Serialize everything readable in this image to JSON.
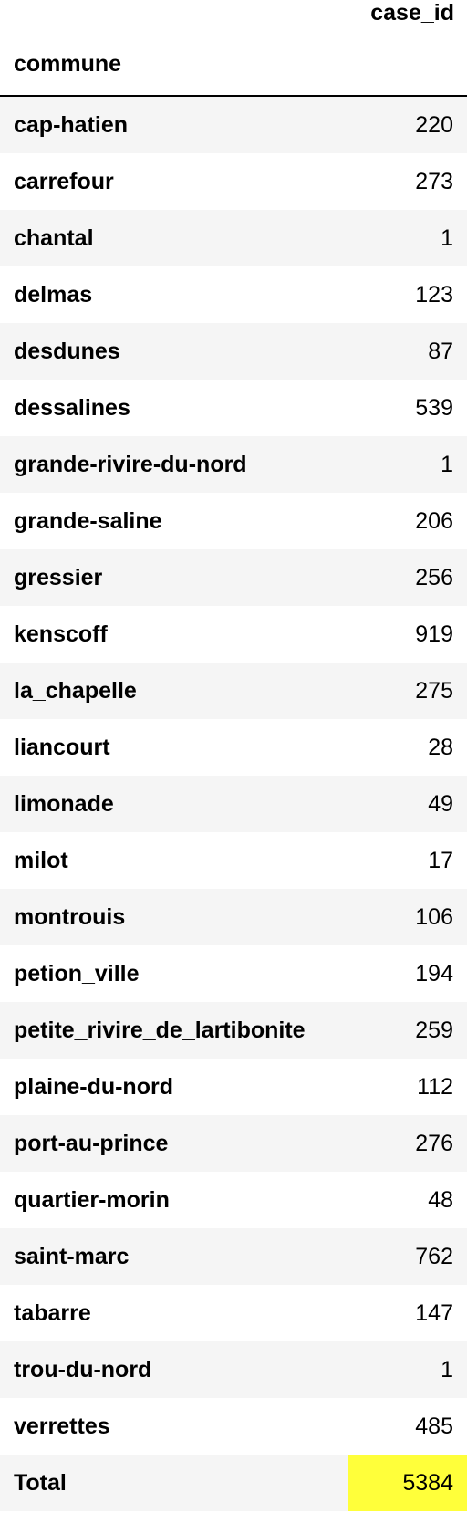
{
  "table": {
    "column_header": "case_id",
    "index_header": "commune",
    "highlight_color": "#ffff3a",
    "rows": [
      {
        "commune": "cap-hatien",
        "case_id": "220"
      },
      {
        "commune": "carrefour",
        "case_id": "273"
      },
      {
        "commune": "chantal",
        "case_id": "1"
      },
      {
        "commune": "delmas",
        "case_id": "123"
      },
      {
        "commune": "desdunes",
        "case_id": "87"
      },
      {
        "commune": "dessalines",
        "case_id": "539"
      },
      {
        "commune": "grande-rivire-du-nord",
        "case_id": "1"
      },
      {
        "commune": "grande-saline",
        "case_id": "206"
      },
      {
        "commune": "gressier",
        "case_id": "256"
      },
      {
        "commune": "kenscoff",
        "case_id": "919"
      },
      {
        "commune": "la_chapelle",
        "case_id": "275"
      },
      {
        "commune": "liancourt",
        "case_id": "28"
      },
      {
        "commune": "limonade",
        "case_id": "49"
      },
      {
        "commune": "milot",
        "case_id": "17"
      },
      {
        "commune": "montrouis",
        "case_id": "106"
      },
      {
        "commune": "petion_ville",
        "case_id": "194"
      },
      {
        "commune": "petite_rivire_de_lartibonite",
        "case_id": "259"
      },
      {
        "commune": "plaine-du-nord",
        "case_id": "112"
      },
      {
        "commune": "port-au-prince",
        "case_id": "276"
      },
      {
        "commune": "quartier-morin",
        "case_id": "48"
      },
      {
        "commune": "saint-marc",
        "case_id": "762"
      },
      {
        "commune": "tabarre",
        "case_id": "147"
      },
      {
        "commune": "trou-du-nord",
        "case_id": "1"
      },
      {
        "commune": "verrettes",
        "case_id": "485"
      }
    ],
    "total": {
      "commune": "Total",
      "case_id": "5384"
    }
  }
}
